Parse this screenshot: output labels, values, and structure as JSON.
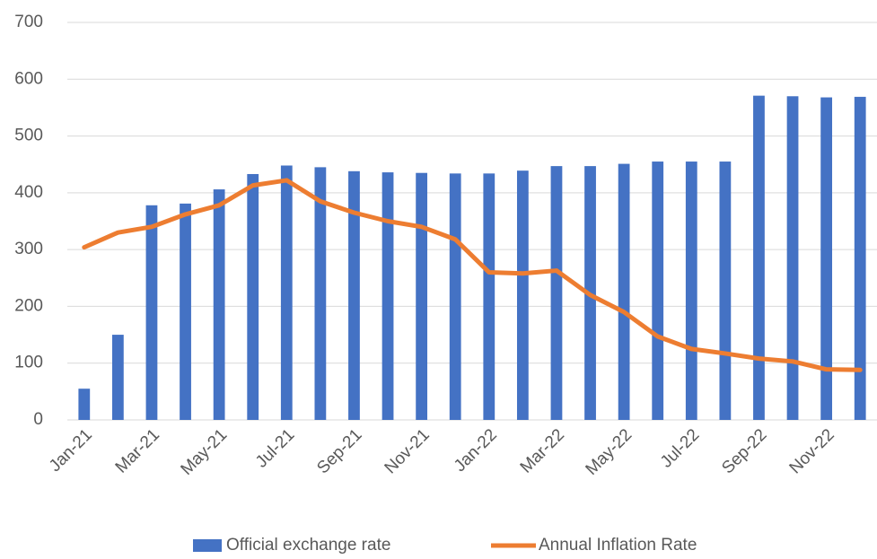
{
  "chart_data": {
    "type": "bar-line",
    "categories": [
      "Jan-21",
      null,
      "Mar-21",
      null,
      "May-21",
      null,
      "Jul-21",
      null,
      "Sep-21",
      null,
      "Nov-21",
      null,
      "Jan-22",
      null,
      "Mar-22",
      null,
      "May-22",
      null,
      "Jul-22",
      null,
      "Sep-22",
      null,
      "Nov-22",
      null
    ],
    "series": [
      {
        "name": "Official exchange rate",
        "type": "bar",
        "color": "#4472c4",
        "values": [
          55,
          150,
          378,
          381,
          406,
          433,
          448,
          445,
          438,
          436,
          435,
          434,
          434,
          439,
          447,
          447,
          451,
          455,
          455,
          455,
          571,
          570,
          568,
          569
        ]
      },
      {
        "name": "Annual Inflation Rate",
        "type": "line",
        "color": "#ed7d31",
        "values": [
          304,
          330,
          340,
          362,
          378,
          413,
          422,
          385,
          365,
          350,
          340,
          318,
          260,
          258,
          263,
          220,
          190,
          147,
          125,
          117,
          108,
          103,
          89,
          88
        ]
      }
    ],
    "ylim": [
      0,
      700
    ],
    "yticks": [
      0,
      100,
      200,
      300,
      400,
      500,
      600,
      700
    ],
    "grid": true,
    "legend": "bottom"
  }
}
